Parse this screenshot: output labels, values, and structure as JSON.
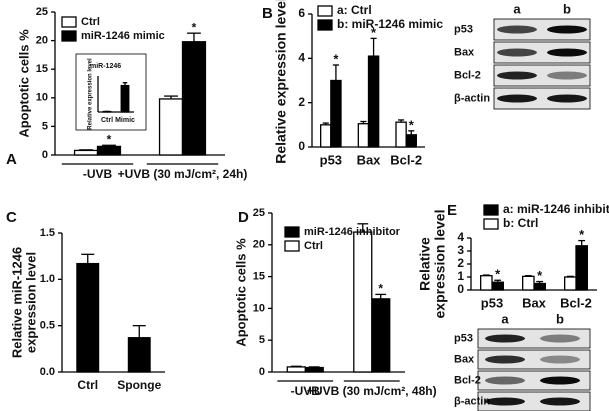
{
  "chart_data": [
    {
      "type": "bar",
      "panel": "A",
      "ylabel": [
        "Apoptotic cells %"
      ],
      "categories": [
        "-UVB",
        "+UVB (30 mJ/cm², 24h)"
      ],
      "series": [
        {
          "name": "Ctrl",
          "color": "#ffffff",
          "values": [
            0.8,
            9.8
          ],
          "errors": [
            0.1,
            0.5
          ],
          "markers": [
            null,
            null
          ]
        },
        {
          "name": "miR-1246 mimic",
          "color": "#000000",
          "values": [
            1.5,
            19.8
          ],
          "errors": [
            0.2,
            1.5
          ],
          "markers": [
            "*",
            "*"
          ]
        }
      ],
      "ylim": [
        0,
        25
      ],
      "yticks": [
        0,
        5,
        10,
        15,
        20,
        25
      ],
      "inset": {
        "type": "bar",
        "title": "miR-1246",
        "ylabel": [
          "Relative expression level"
        ],
        "categories": [
          "Ctrl",
          "Mimic"
        ],
        "values": [
          2,
          110
        ],
        "errors": [
          0.5,
          12
        ],
        "color": "#000000",
        "ylim": [
          0,
          150
        ]
      }
    },
    {
      "type": "bar",
      "panel": "B",
      "ylabel": [
        "Relative expression level"
      ],
      "categories": [
        "p53",
        "Bax",
        "Bcl-2"
      ],
      "series": [
        {
          "name": "a: Ctrl",
          "color": "#ffffff",
          "values": [
            1.0,
            1.05,
            1.12
          ],
          "errors": [
            0.08,
            0.1,
            0.1
          ],
          "markers": [
            null,
            null,
            null
          ]
        },
        {
          "name": "b: miR-1246 mimic",
          "color": "#000000",
          "values": [
            3.0,
            4.1,
            0.55
          ],
          "errors": [
            0.7,
            0.8,
            0.18
          ],
          "markers": [
            "*",
            "*",
            "*"
          ]
        }
      ],
      "ylim": [
        0,
        6
      ],
      "yticks": [
        0,
        2,
        4,
        6
      ],
      "blot": {
        "lanes": [
          "a",
          "b"
        ],
        "rows": [
          "p53",
          "Bax",
          "Bcl-2",
          "β-actin"
        ]
      }
    },
    {
      "type": "bar",
      "panel": "C",
      "ylabel": [
        "Relative miR-1246",
        "expression level"
      ],
      "categories": [
        "Ctrl",
        "Sponge"
      ],
      "values": [
        1.17,
        0.37
      ],
      "errors": [
        0.1,
        0.13
      ],
      "color": "#000000",
      "ylim": [
        0,
        1.5
      ],
      "yticks": [
        {
          "value": 0,
          "label": "0.0"
        },
        {
          "value": 0.5,
          "label": "0.5"
        },
        {
          "value": 1,
          "label": "1.0"
        },
        1.5
      ]
    },
    {
      "type": "bar",
      "panel": "D",
      "ylabel": [
        "Apoptotic cells %"
      ],
      "categories": [
        "-UVB",
        "+UVB (30 mJ/cm², 48h)"
      ],
      "series": [
        {
          "name": "miR-1246 inhibitor",
          "color": "#000000",
          "values": [
            0.7,
            11.5
          ],
          "errors": [
            0.1,
            0.7
          ],
          "markers": [
            null,
            "*"
          ]
        },
        {
          "name": "Ctrl",
          "color": "#ffffff",
          "values": [
            0.8,
            22.0
          ],
          "errors": [
            0.1,
            1.3
          ],
          "markers": [
            null,
            null
          ]
        }
      ],
      "ylim": [
        0,
        25
      ],
      "yticks": [
        0,
        5,
        10,
        15,
        20,
        25
      ]
    },
    {
      "type": "bar",
      "panel": "E",
      "ylabel": [
        "Relative",
        "expression level"
      ],
      "categories": [
        "p53",
        "Bax",
        "Bcl-2"
      ],
      "series": [
        {
          "name": "a: miR-1246 inhibitor",
          "color": "#000000",
          "values": [
            0.6,
            0.5,
            3.4
          ],
          "errors": [
            0.15,
            0.15,
            0.4
          ],
          "markers": [
            "*",
            "*",
            "*"
          ]
        },
        {
          "name": "b: Ctrl",
          "color": "#ffffff",
          "values": [
            1.1,
            1.05,
            1.0
          ],
          "errors": [
            0.05,
            0.05,
            0.05
          ],
          "markers": [
            null,
            null,
            null
          ]
        }
      ],
      "ylim": [
        0,
        4
      ],
      "yticks": [
        0,
        1,
        2,
        3,
        4
      ],
      "blot": {
        "lanes": [
          "a",
          "b"
        ],
        "rows": [
          "p53",
          "Bax",
          "Bcl-2",
          "β-actin"
        ]
      }
    }
  ]
}
